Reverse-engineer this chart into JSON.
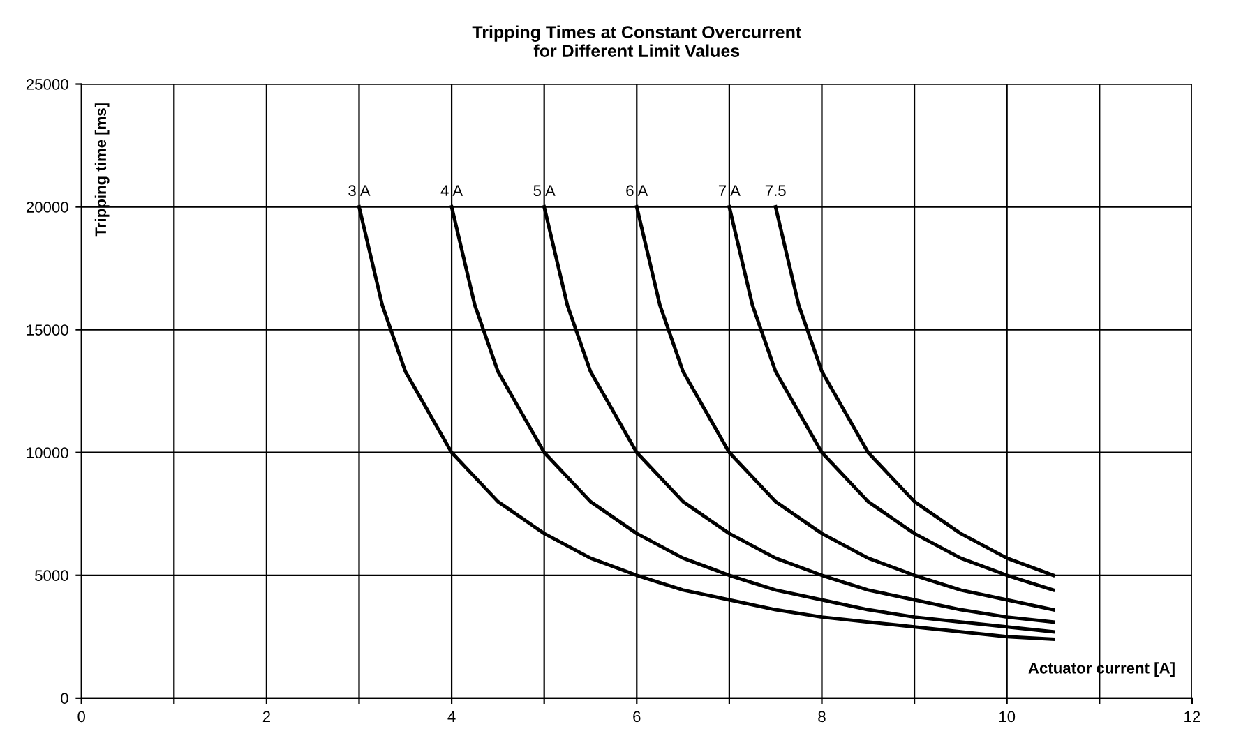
{
  "chart_data": {
    "type": "line",
    "title": "Tripping Times at Constant Overcurrent\nfor Different Limit Values",
    "xlabel": "Actuator current [A]",
    "ylabel": "Tripping time [ms]",
    "xlim": [
      0,
      12
    ],
    "ylim": [
      0,
      25000
    ],
    "xticks": [
      0,
      {
        "value": 1,
        "label": null
      },
      2,
      {
        "value": 3,
        "label": null
      },
      4,
      {
        "value": 5,
        "label": null
      },
      6,
      {
        "value": 7,
        "label": null
      },
      8,
      {
        "value": 9,
        "label": null
      },
      10,
      {
        "value": 11,
        "label": null
      },
      12
    ],
    "yticks": [
      0,
      5000,
      10000,
      15000,
      20000,
      25000
    ],
    "grid": true,
    "legend": false,
    "marker": "none",
    "line_style": "solid",
    "series": [
      {
        "name": "3 A",
        "color": "#000000",
        "x": [
          3,
          3.25,
          3.5,
          4,
          4.5,
          5,
          5.5,
          6,
          6.5,
          7,
          7.5,
          8,
          8.5,
          9,
          9.5,
          10,
          10.5
        ],
        "values": [
          20000,
          16000,
          13300,
          10000,
          8000,
          6700,
          5700,
          5000,
          4400,
          4000,
          3600,
          3300,
          3100,
          2900,
          2700,
          2500,
          2400
        ]
      },
      {
        "name": "4 A",
        "color": "#000000",
        "x": [
          4,
          4.25,
          4.5,
          5,
          5.5,
          6,
          6.5,
          7,
          7.5,
          8,
          8.5,
          9,
          9.5,
          10,
          10.5
        ],
        "values": [
          20000,
          16000,
          13300,
          10000,
          8000,
          6700,
          5700,
          5000,
          4400,
          4000,
          3600,
          3300,
          3100,
          2900,
          2700
        ]
      },
      {
        "name": "5 A",
        "color": "#000000",
        "x": [
          5,
          5.25,
          5.5,
          6,
          6.5,
          7,
          7.5,
          8,
          8.5,
          9,
          9.5,
          10,
          10.5
        ],
        "values": [
          20000,
          16000,
          13300,
          10000,
          8000,
          6700,
          5700,
          5000,
          4400,
          4000,
          3600,
          3300,
          3100
        ]
      },
      {
        "name": "6 A",
        "color": "#000000",
        "x": [
          6,
          6.25,
          6.5,
          7,
          7.5,
          8,
          8.5,
          9,
          9.5,
          10,
          10.5
        ],
        "values": [
          20000,
          16000,
          13300,
          10000,
          8000,
          6700,
          5700,
          5000,
          4400,
          4000,
          3600
        ]
      },
      {
        "name": "7 A",
        "color": "#000000",
        "x": [
          7,
          7.25,
          7.5,
          8,
          8.5,
          9,
          9.5,
          10,
          10.5
        ],
        "values": [
          20000,
          16000,
          13300,
          10000,
          8000,
          6700,
          5700,
          5000,
          4400
        ]
      },
      {
        "name": "7.5",
        "color": "#000000",
        "x": [
          7.5,
          7.75,
          8,
          8.5,
          9,
          9.5,
          10,
          10.5
        ],
        "values": [
          20000,
          16000,
          13300,
          10000,
          8000,
          6700,
          5700,
          5000
        ]
      }
    ]
  }
}
